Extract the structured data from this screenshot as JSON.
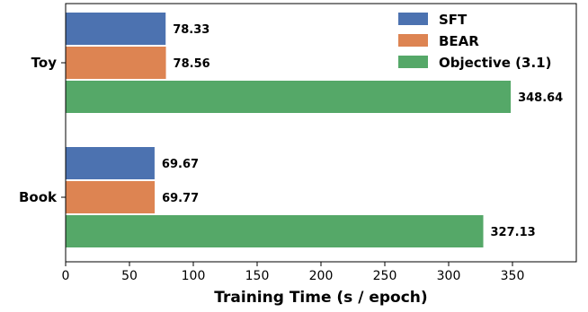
{
  "chart_data": {
    "type": "bar",
    "orientation": "horizontal",
    "categories": [
      "Toy",
      "Book"
    ],
    "series": [
      {
        "name": "SFT",
        "color": "#4c72b0",
        "values": [
          78.33,
          69.67
        ],
        "labels": [
          "78.33",
          "69.67"
        ]
      },
      {
        "name": "BEAR",
        "color": "#dd8452",
        "values": [
          78.56,
          69.77
        ],
        "labels": [
          "78.56",
          "69.77"
        ]
      },
      {
        "name": "Objective (3.1)",
        "color": "#55a868",
        "values": [
          348.64,
          327.13
        ],
        "labels": [
          "348.64",
          "327.13"
        ]
      }
    ],
    "xlabel": "Training Time (s / epoch)",
    "xlim": [
      0,
      400
    ],
    "xticks": [
      0,
      50,
      100,
      150,
      200,
      250,
      300,
      350
    ],
    "xtick_labels": [
      "0",
      "50",
      "100",
      "150",
      "200",
      "250",
      "300",
      "350"
    ],
    "grid": false,
    "legend_position": "top-right"
  }
}
